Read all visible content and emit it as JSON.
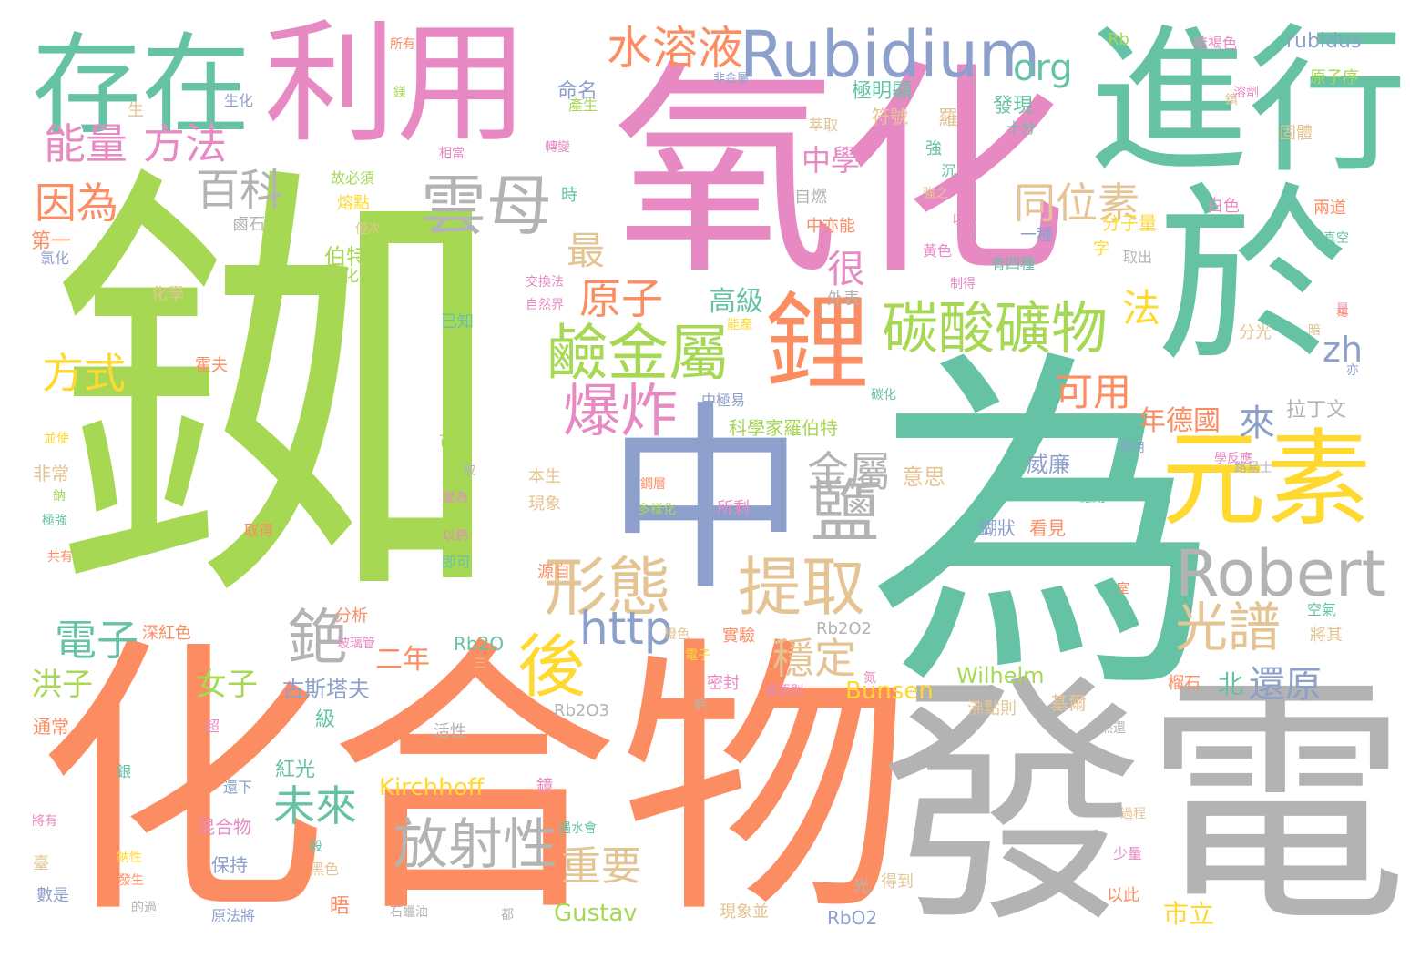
{
  "palette": [
    "#a6d854",
    "#66c2a5",
    "#fc8d62",
    "#e78ac3",
    "#8da0cb",
    "#b3b3b3",
    "#ffd92f",
    "#e5c494"
  ],
  "words": [
    {
      "text": "銣",
      "color": "#a6d854"
    },
    {
      "text": "氧化",
      "color": "#e78ac3"
    },
    {
      "text": "為",
      "color": "#66c2a5"
    },
    {
      "text": "化合物",
      "color": "#fc8d62"
    },
    {
      "text": "發電",
      "color": "#b3b3b3"
    },
    {
      "text": "中",
      "color": "#8da0cb"
    },
    {
      "text": "於",
      "color": "#66c2a5"
    },
    {
      "text": "進行",
      "color": "#66c2a5"
    },
    {
      "text": "利用",
      "color": "#e78ac3"
    },
    {
      "text": "存在",
      "color": "#66c2a5"
    },
    {
      "text": "Rubidium",
      "color": "#8da0cb"
    },
    {
      "text": "元素",
      "color": "#ffd92f"
    },
    {
      "text": "鋰",
      "color": "#fc8d62"
    },
    {
      "text": "Robert",
      "color": "#b3b3b3"
    },
    {
      "text": "碳酸礦物",
      "color": "#a6d854"
    },
    {
      "text": "鹼金屬",
      "color": "#a6d854"
    },
    {
      "text": "雲母",
      "color": "#b3b3b3"
    },
    {
      "text": "提取",
      "color": "#e5c494"
    },
    {
      "text": "爆炸",
      "color": "#e78ac3"
    },
    {
      "text": "形態",
      "color": "#e5c494"
    },
    {
      "text": "光譜",
      "color": "#e5c494"
    },
    {
      "text": "水溶液",
      "color": "#fc8d62"
    },
    {
      "text": "鹽",
      "color": "#b3b3b3"
    },
    {
      "text": "後",
      "color": "#ffd92f"
    },
    {
      "text": "放射性",
      "color": "#b3b3b3"
    },
    {
      "text": "銫",
      "color": "#b3b3b3"
    },
    {
      "text": "http",
      "color": "#8da0cb"
    },
    {
      "text": "百科",
      "color": "#b3b3b3"
    },
    {
      "text": "能量",
      "color": "#e78ac3"
    },
    {
      "text": "方法",
      "color": "#e78ac3"
    },
    {
      "text": "因為",
      "color": "#fc8d62"
    },
    {
      "text": "同位素",
      "color": "#e5c494"
    },
    {
      "text": "金屬",
      "color": "#b3b3b3"
    },
    {
      "text": "原子",
      "color": "#fc8d62"
    },
    {
      "text": "穩定",
      "color": "#e5c494"
    },
    {
      "text": "未來",
      "color": "#66c2a5"
    },
    {
      "text": "電子",
      "color": "#66c2a5"
    },
    {
      "text": "org",
      "color": "#66c2a5"
    },
    {
      "text": "方式",
      "color": "#ffd92f"
    },
    {
      "text": "還原",
      "color": "#8da0cb"
    },
    {
      "text": "重要",
      "color": "#e5c494"
    },
    {
      "text": "可用",
      "color": "#fc8d62"
    },
    {
      "text": "最",
      "color": "#e5c494"
    },
    {
      "text": "很",
      "color": "#e78ac3"
    },
    {
      "text": "法",
      "color": "#ffd92f"
    },
    {
      "text": "zh",
      "color": "#8da0cb"
    },
    {
      "text": "來",
      "color": "#8da0cb"
    },
    {
      "text": "女子",
      "color": "#a6d854"
    },
    {
      "text": "洪子",
      "color": "#a6d854"
    },
    {
      "text": "中學",
      "color": "#e78ac3"
    },
    {
      "text": "高級",
      "color": "#66c2a5"
    },
    {
      "text": "年德國",
      "color": "#fc8d62"
    },
    {
      "text": "二年",
      "color": "#fc8d62"
    },
    {
      "text": "北",
      "color": "#66c2a5"
    },
    {
      "text": "市立",
      "color": "#ffd92f"
    },
    {
      "text": "Gustav",
      "color": "#a6d854"
    },
    {
      "text": "Kirchhoff",
      "color": "#ffd92f"
    },
    {
      "text": "Bunsen",
      "color": "#ffd92f"
    },
    {
      "text": "Wilhelm",
      "color": "#a6d854"
    },
    {
      "text": "rubidus",
      "color": "#8da0cb"
    },
    {
      "text": "拉丁文",
      "color": "#b3b3b3"
    },
    {
      "text": "意思",
      "color": "#e5c494"
    },
    {
      "text": "威廉",
      "color": "#8da0cb"
    },
    {
      "text": "古斯塔夫",
      "color": "#8da0cb"
    },
    {
      "text": "科學家羅伯特",
      "color": "#a6d854"
    },
    {
      "text": "伯特",
      "color": "#a6d854"
    },
    {
      "text": "第一",
      "color": "#fc8d62"
    },
    {
      "text": "發現",
      "color": "#66c2a5"
    },
    {
      "text": "羅",
      "color": "#e5c494"
    },
    {
      "text": "命名",
      "color": "#8da0cb"
    },
    {
      "text": "極明顯",
      "color": "#66c2a5"
    },
    {
      "text": "符號",
      "color": "#e5c494"
    },
    {
      "text": "基爾",
      "color": "#e5c494"
    },
    {
      "text": "紅光",
      "color": "#66c2a5"
    },
    {
      "text": "級",
      "color": "#66c2a5"
    },
    {
      "text": "晤",
      "color": "#fc8d62"
    },
    {
      "text": "蝴狀",
      "color": "#8da0cb"
    },
    {
      "text": "看見",
      "color": "#fc8d62"
    },
    {
      "text": "混合物",
      "color": "#e78ac3"
    },
    {
      "text": "保持",
      "color": "#8da0cb"
    },
    {
      "text": "通常",
      "color": "#fc8d62"
    },
    {
      "text": "非常",
      "color": "#e5c494"
    },
    {
      "text": "分子量",
      "color": "#ffd92f"
    },
    {
      "text": "Rb2O",
      "color": "#66c2a5"
    },
    {
      "text": "Rb2O2",
      "color": "#b3b3b3"
    },
    {
      "text": "Rb2O3",
      "color": "#b3b3b3"
    },
    {
      "text": "RbO2",
      "color": "#8da0cb"
    },
    {
      "text": "Rb",
      "color": "#a6d854"
    },
    {
      "text": "原子序",
      "color": "#a6d854"
    },
    {
      "text": "固體",
      "color": "#e5c494"
    },
    {
      "text": "兩道",
      "color": "#fc8d62"
    },
    {
      "text": "白色",
      "color": "#e78ac3"
    },
    {
      "text": "外表",
      "color": "#b3b3b3"
    },
    {
      "text": "中亦能",
      "color": "#fc8d62"
    },
    {
      "text": "自燃",
      "color": "#b3b3b3"
    },
    {
      "text": "一種",
      "color": "#8da0cb"
    },
    {
      "text": "有四種",
      "color": "#66c2a5"
    },
    {
      "text": "氧化物",
      "color": "#a6d854"
    },
    {
      "text": "已知",
      "color": "#66c2a5"
    },
    {
      "text": "可能",
      "color": "#a6d854"
    },
    {
      "text": "即可",
      "color": "#66c2a5"
    },
    {
      "text": "分析",
      "color": "#fc8d62"
    },
    {
      "text": "本生",
      "color": "#e5c494"
    },
    {
      "text": "現象",
      "color": "#e5c494"
    },
    {
      "text": "源自",
      "color": "#fc8d62"
    },
    {
      "text": "實驗",
      "color": "#fc8d62"
    },
    {
      "text": "密封",
      "color": "#e78ac3"
    },
    {
      "text": "所剩",
      "color": "#e78ac3"
    },
    {
      "text": "沸點則",
      "color": "#e5c494"
    },
    {
      "text": "榴石",
      "color": "#fc8d62"
    },
    {
      "text": "將其",
      "color": "#e5c494"
    },
    {
      "text": "空氣",
      "color": "#66c2a5"
    },
    {
      "text": "得到",
      "color": "#e5c494"
    },
    {
      "text": "以此",
      "color": "#fc8d62"
    },
    {
      "text": "少量",
      "color": "#e78ac3"
    },
    {
      "text": "深紅色",
      "color": "#fc8d62"
    },
    {
      "text": "霍夫",
      "color": "#fc8d62"
    },
    {
      "text": "化學",
      "color": "#e5c494"
    },
    {
      "text": "氯化",
      "color": "#8da0cb"
    },
    {
      "text": "鹵石",
      "color": "#b3b3b3"
    },
    {
      "text": "熔點",
      "color": "#ffd92f"
    },
    {
      "text": "暗褐色",
      "color": "#e78ac3"
    },
    {
      "text": "所有",
      "color": "#fc8d62"
    },
    {
      "text": "生化",
      "color": "#8da0cb"
    },
    {
      "text": "生",
      "color": "#e5c494"
    },
    {
      "text": "故必須",
      "color": "#a6d854"
    },
    {
      "text": "產生",
      "color": "#a6d854"
    },
    {
      "text": "相當",
      "color": "#e78ac3"
    },
    {
      "text": "轉變",
      "color": "#e78ac3"
    },
    {
      "text": "時",
      "color": "#66c2a5"
    },
    {
      "text": "十分",
      "color": "#66c2a5"
    },
    {
      "text": "強",
      "color": "#66c2a5"
    },
    {
      "text": "萃取",
      "color": "#e5c494"
    },
    {
      "text": "非金屬",
      "color": "#8da0cb"
    },
    {
      "text": "取出",
      "color": "#b3b3b3"
    },
    {
      "text": "交換法",
      "color": "#e78ac3"
    },
    {
      "text": "自然界",
      "color": "#e78ac3"
    },
    {
      "text": "碳化",
      "color": "#66c2a5"
    },
    {
      "text": "中極易",
      "color": "#8da0cb"
    },
    {
      "text": "使用",
      "color": "#8da0cb"
    },
    {
      "text": "分光",
      "color": "#e5c494"
    },
    {
      "text": "路易士",
      "color": "#b3b3b3"
    },
    {
      "text": "極強",
      "color": "#66c2a5"
    },
    {
      "text": "共有",
      "color": "#fc8d62"
    },
    {
      "text": "取得",
      "color": "#fc8d62"
    },
    {
      "text": "變為",
      "color": "#e78ac3"
    },
    {
      "text": "以鈣",
      "color": "#e78ac3"
    },
    {
      "text": "銀",
      "color": "#66c2a5"
    },
    {
      "text": "超",
      "color": "#e78ac3"
    },
    {
      "text": "活性",
      "color": "#b3b3b3"
    },
    {
      "text": "遇水會",
      "color": "#66c2a5"
    },
    {
      "text": "還下",
      "color": "#8da0cb"
    },
    {
      "text": "黑色",
      "color": "#e5c494"
    },
    {
      "text": "發生",
      "color": "#fc8d62"
    },
    {
      "text": "數是",
      "color": "#8da0cb"
    },
    {
      "text": "的過",
      "color": "#b3b3b3"
    },
    {
      "text": "原法將",
      "color": "#8da0cb"
    },
    {
      "text": "石蠟油",
      "color": "#b3b3b3"
    },
    {
      "text": "都",
      "color": "#b3b3b3"
    },
    {
      "text": "現象並",
      "color": "#e5c494"
    },
    {
      "text": "光",
      "color": "#b3b3b3"
    },
    {
      "text": "過程",
      "color": "#e5c494"
    },
    {
      "text": "熱還",
      "color": "#b3b3b3"
    },
    {
      "text": "還原則",
      "color": "#e78ac3"
    },
    {
      "text": "鎂",
      "color": "#a6d854"
    },
    {
      "text": "以外",
      "color": "#e78ac3"
    },
    {
      "text": "強之",
      "color": "#e5c494"
    },
    {
      "text": "僅次",
      "color": "#e5c494"
    },
    {
      "text": "黃色",
      "color": "#e78ac3"
    },
    {
      "text": "制得",
      "color": "#e78ac3"
    },
    {
      "text": "暗",
      "color": "#e5c494"
    },
    {
      "text": "真空",
      "color": "#66c2a5"
    },
    {
      "text": "亦",
      "color": "#8da0cb"
    },
    {
      "text": "是",
      "color": "#e78ac3"
    },
    {
      "text": "能產",
      "color": "#ffd92f"
    },
    {
      "text": "並使",
      "color": "#ffd92f"
    },
    {
      "text": "鎮",
      "color": "#e5c494"
    },
    {
      "text": "鋼層",
      "color": "#fc8d62"
    },
    {
      "text": "多樣化",
      "color": "#a6d854"
    },
    {
      "text": "學反應",
      "color": "#e78ac3"
    },
    {
      "text": "應用",
      "color": "#66c2a5"
    },
    {
      "text": "鏡",
      "color": "#e78ac3"
    },
    {
      "text": "玻璃管",
      "color": "#e78ac3"
    },
    {
      "text": "橙色",
      "color": "#e5c494"
    },
    {
      "text": "電子",
      "color": "#ffd92f"
    },
    {
      "text": "三",
      "color": "#e5c494"
    },
    {
      "text": "溶劑",
      "color": "#e78ac3"
    },
    {
      "text": "鈉",
      "color": "#a6d854"
    },
    {
      "text": "鈣",
      "color": "#b3b3b3"
    },
    {
      "text": "字",
      "color": "#ffd92f"
    },
    {
      "text": "沉",
      "color": "#66c2a5"
    },
    {
      "text": "鈉性",
      "color": "#ffd92f"
    },
    {
      "text": "氮",
      "color": "#e78ac3"
    },
    {
      "text": "殺",
      "color": "#66c2a5"
    },
    {
      "text": "室",
      "color": "#fc8d62"
    },
    {
      "text": "將有",
      "color": "#e78ac3"
    },
    {
      "text": "臺",
      "color": "#e5c494"
    },
    {
      "text": "被",
      "color": "#b3b3b3"
    },
    {
      "text": "總",
      "color": "#fc8d62"
    }
  ]
}
